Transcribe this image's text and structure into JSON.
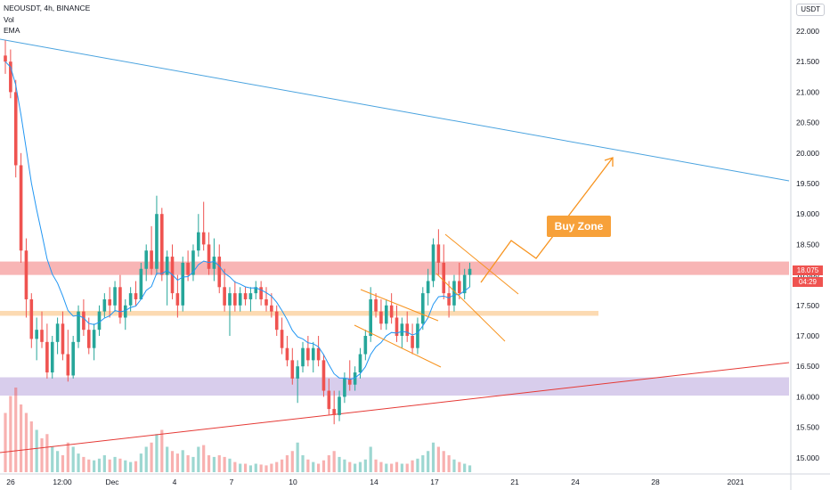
{
  "header": {
    "symbol_line": "NEOUSDT, 4h, BINANCE",
    "indicator_vol": "Vol",
    "indicator_ema": "EMA"
  },
  "currency": "USDT",
  "price_axis": {
    "labels": [
      "22.000",
      "21.500",
      "21.000",
      "20.500",
      "20.000",
      "19.500",
      "19.000",
      "18.500",
      "18.000",
      "17.500",
      "17.000",
      "16.500",
      "16.000",
      "15.500",
      "15.000"
    ],
    "values": [
      22.0,
      21.5,
      21.0,
      20.5,
      20.0,
      19.5,
      19.0,
      18.5,
      18.0,
      17.5,
      17.0,
      16.5,
      16.0,
      15.5,
      15.0
    ]
  },
  "time_axis": {
    "labels": [
      "26",
      "12:00",
      "Dec",
      "4",
      "7",
      "10",
      "14",
      "17",
      "21",
      "24",
      "28",
      "2021"
    ]
  },
  "last_price": {
    "value": "18.075",
    "countdown": "04:29"
  },
  "annotation": {
    "label": "Buy Zone"
  },
  "colors": {
    "up": "#26a69a",
    "down": "#ef5350",
    "ema": "#2196f3",
    "resistance_zone": "#f7a8a8",
    "support_zone_orange": "#fbd3a4",
    "support_zone_purple": "#d1c4e9",
    "arrow_orange": "#f7931e",
    "trend_blue": "#4aa3df",
    "trend_red": "#e53935"
  },
  "chart_data": {
    "type": "candlestick",
    "symbol": "NEOUSDT",
    "interval": "4h",
    "exchange": "BINANCE",
    "ylim": [
      14.85,
      22.15
    ],
    "last_price": 18.075,
    "zones": [
      {
        "name": "resistance",
        "from": 18.0,
        "to": 18.22
      },
      {
        "name": "support",
        "from": 17.33,
        "to": 17.41
      },
      {
        "name": "demand",
        "from": 16.02,
        "to": 16.32
      }
    ],
    "candles": [
      {
        "o": 21.6,
        "h": 21.85,
        "l": 21.3,
        "c": 21.5,
        "v": 0.7
      },
      {
        "o": 21.5,
        "h": 21.7,
        "l": 20.9,
        "c": 21.0,
        "v": 0.9
      },
      {
        "o": 21.0,
        "h": 21.2,
        "l": 19.6,
        "c": 19.8,
        "v": 1.0
      },
      {
        "o": 19.8,
        "h": 20.0,
        "l": 18.2,
        "c": 18.4,
        "v": 0.8
      },
      {
        "o": 18.4,
        "h": 18.6,
        "l": 17.3,
        "c": 17.6,
        "v": 0.7
      },
      {
        "o": 17.6,
        "h": 17.7,
        "l": 16.8,
        "c": 16.95,
        "v": 0.6
      },
      {
        "o": 16.95,
        "h": 17.3,
        "l": 16.6,
        "c": 17.1,
        "v": 0.5
      },
      {
        "o": 17.1,
        "h": 17.4,
        "l": 16.8,
        "c": 16.9,
        "v": 0.4
      },
      {
        "o": 16.9,
        "h": 17.2,
        "l": 16.3,
        "c": 16.4,
        "v": 0.45
      },
      {
        "o": 16.4,
        "h": 17.0,
        "l": 16.3,
        "c": 16.9,
        "v": 0.3
      },
      {
        "o": 16.9,
        "h": 17.3,
        "l": 16.7,
        "c": 17.2,
        "v": 0.25
      },
      {
        "o": 17.2,
        "h": 17.4,
        "l": 16.6,
        "c": 16.7,
        "v": 0.2
      },
      {
        "o": 16.7,
        "h": 17.1,
        "l": 16.25,
        "c": 16.35,
        "v": 0.35
      },
      {
        "o": 16.35,
        "h": 17.0,
        "l": 16.3,
        "c": 16.9,
        "v": 0.3
      },
      {
        "o": 16.9,
        "h": 17.5,
        "l": 16.8,
        "c": 17.4,
        "v": 0.22
      },
      {
        "o": 17.4,
        "h": 17.6,
        "l": 17.0,
        "c": 17.1,
        "v": 0.18
      },
      {
        "o": 17.1,
        "h": 17.3,
        "l": 16.7,
        "c": 16.8,
        "v": 0.15
      },
      {
        "o": 16.8,
        "h": 17.2,
        "l": 16.6,
        "c": 17.1,
        "v": 0.14
      },
      {
        "o": 17.1,
        "h": 17.5,
        "l": 17.0,
        "c": 17.4,
        "v": 0.16
      },
      {
        "o": 17.4,
        "h": 17.7,
        "l": 17.3,
        "c": 17.6,
        "v": 0.2
      },
      {
        "o": 17.6,
        "h": 17.8,
        "l": 17.3,
        "c": 17.5,
        "v": 0.15
      },
      {
        "o": 17.5,
        "h": 17.9,
        "l": 17.4,
        "c": 17.8,
        "v": 0.18
      },
      {
        "o": 17.8,
        "h": 18.0,
        "l": 17.2,
        "c": 17.3,
        "v": 0.16
      },
      {
        "o": 17.3,
        "h": 17.6,
        "l": 17.1,
        "c": 17.5,
        "v": 0.14
      },
      {
        "o": 17.5,
        "h": 17.8,
        "l": 17.4,
        "c": 17.7,
        "v": 0.12
      },
      {
        "o": 17.7,
        "h": 17.9,
        "l": 17.5,
        "c": 17.6,
        "v": 0.13
      },
      {
        "o": 17.6,
        "h": 18.2,
        "l": 17.6,
        "c": 18.1,
        "v": 0.22
      },
      {
        "o": 18.1,
        "h": 18.5,
        "l": 17.9,
        "c": 18.4,
        "v": 0.3
      },
      {
        "o": 18.4,
        "h": 18.8,
        "l": 18.0,
        "c": 18.1,
        "v": 0.35
      },
      {
        "o": 18.1,
        "h": 19.3,
        "l": 18.0,
        "c": 19.0,
        "v": 0.45
      },
      {
        "o": 19.0,
        "h": 19.1,
        "l": 17.9,
        "c": 18.0,
        "v": 0.5
      },
      {
        "o": 18.0,
        "h": 18.4,
        "l": 17.5,
        "c": 18.3,
        "v": 0.3
      },
      {
        "o": 18.3,
        "h": 18.5,
        "l": 17.6,
        "c": 17.7,
        "v": 0.25
      },
      {
        "o": 17.7,
        "h": 18.0,
        "l": 17.3,
        "c": 17.5,
        "v": 0.22
      },
      {
        "o": 17.5,
        "h": 18.3,
        "l": 17.4,
        "c": 18.2,
        "v": 0.26
      },
      {
        "o": 18.2,
        "h": 18.4,
        "l": 17.9,
        "c": 18.0,
        "v": 0.2
      },
      {
        "o": 18.0,
        "h": 18.5,
        "l": 17.9,
        "c": 18.4,
        "v": 0.18
      },
      {
        "o": 18.4,
        "h": 19.0,
        "l": 18.3,
        "c": 18.7,
        "v": 0.3
      },
      {
        "o": 18.7,
        "h": 19.2,
        "l": 18.4,
        "c": 18.5,
        "v": 0.32
      },
      {
        "o": 18.5,
        "h": 18.7,
        "l": 18.0,
        "c": 18.1,
        "v": 0.2
      },
      {
        "o": 18.1,
        "h": 18.6,
        "l": 17.9,
        "c": 18.3,
        "v": 0.18
      },
      {
        "o": 18.3,
        "h": 18.5,
        "l": 17.7,
        "c": 17.8,
        "v": 0.2
      },
      {
        "o": 17.8,
        "h": 18.1,
        "l": 17.4,
        "c": 17.5,
        "v": 0.18
      },
      {
        "o": 17.5,
        "h": 17.8,
        "l": 17.0,
        "c": 17.7,
        "v": 0.16
      },
      {
        "o": 17.7,
        "h": 17.9,
        "l": 17.4,
        "c": 17.5,
        "v": 0.12
      },
      {
        "o": 17.5,
        "h": 17.8,
        "l": 17.4,
        "c": 17.7,
        "v": 0.1
      },
      {
        "o": 17.7,
        "h": 17.8,
        "l": 17.5,
        "c": 17.6,
        "v": 0.1
      },
      {
        "o": 17.6,
        "h": 17.8,
        "l": 17.4,
        "c": 17.7,
        "v": 0.08
      },
      {
        "o": 17.7,
        "h": 17.9,
        "l": 17.6,
        "c": 17.8,
        "v": 0.1
      },
      {
        "o": 17.8,
        "h": 17.9,
        "l": 17.5,
        "c": 17.6,
        "v": 0.09
      },
      {
        "o": 17.6,
        "h": 17.8,
        "l": 17.4,
        "c": 17.5,
        "v": 0.08
      },
      {
        "o": 17.5,
        "h": 17.7,
        "l": 17.3,
        "c": 17.4,
        "v": 0.1
      },
      {
        "o": 17.4,
        "h": 17.5,
        "l": 17.0,
        "c": 17.1,
        "v": 0.12
      },
      {
        "o": 17.1,
        "h": 17.3,
        "l": 16.7,
        "c": 16.8,
        "v": 0.15
      },
      {
        "o": 16.8,
        "h": 17.0,
        "l": 16.5,
        "c": 16.6,
        "v": 0.2
      },
      {
        "o": 16.6,
        "h": 16.8,
        "l": 16.2,
        "c": 16.3,
        "v": 0.25
      },
      {
        "o": 16.3,
        "h": 16.6,
        "l": 15.9,
        "c": 16.5,
        "v": 0.35
      },
      {
        "o": 16.5,
        "h": 16.9,
        "l": 16.4,
        "c": 16.8,
        "v": 0.2
      },
      {
        "o": 16.8,
        "h": 17.0,
        "l": 16.5,
        "c": 16.6,
        "v": 0.15
      },
      {
        "o": 16.6,
        "h": 16.9,
        "l": 16.4,
        "c": 16.8,
        "v": 0.12
      },
      {
        "o": 16.8,
        "h": 17.0,
        "l": 16.5,
        "c": 16.6,
        "v": 0.1
      },
      {
        "o": 16.6,
        "h": 16.7,
        "l": 16.0,
        "c": 16.1,
        "v": 0.14
      },
      {
        "o": 16.1,
        "h": 16.3,
        "l": 15.7,
        "c": 15.8,
        "v": 0.2
      },
      {
        "o": 15.8,
        "h": 16.1,
        "l": 15.55,
        "c": 15.7,
        "v": 0.25
      },
      {
        "o": 15.7,
        "h": 16.1,
        "l": 15.6,
        "c": 16.0,
        "v": 0.18
      },
      {
        "o": 16.0,
        "h": 16.4,
        "l": 15.9,
        "c": 16.3,
        "v": 0.15
      },
      {
        "o": 16.3,
        "h": 16.6,
        "l": 16.1,
        "c": 16.2,
        "v": 0.12
      },
      {
        "o": 16.2,
        "h": 16.5,
        "l": 16.1,
        "c": 16.4,
        "v": 0.1
      },
      {
        "o": 16.4,
        "h": 16.8,
        "l": 16.3,
        "c": 16.7,
        "v": 0.12
      },
      {
        "o": 16.7,
        "h": 17.1,
        "l": 16.6,
        "c": 17.0,
        "v": 0.15
      },
      {
        "o": 17.0,
        "h": 17.8,
        "l": 16.9,
        "c": 17.6,
        "v": 0.3
      },
      {
        "o": 17.6,
        "h": 17.7,
        "l": 17.3,
        "c": 17.4,
        "v": 0.15
      },
      {
        "o": 17.4,
        "h": 17.6,
        "l": 17.1,
        "c": 17.2,
        "v": 0.12
      },
      {
        "o": 17.2,
        "h": 17.6,
        "l": 17.1,
        "c": 17.5,
        "v": 0.1
      },
      {
        "o": 17.5,
        "h": 17.7,
        "l": 17.2,
        "c": 17.3,
        "v": 0.1
      },
      {
        "o": 17.3,
        "h": 17.5,
        "l": 16.9,
        "c": 17.0,
        "v": 0.12
      },
      {
        "o": 17.0,
        "h": 17.3,
        "l": 16.8,
        "c": 17.2,
        "v": 0.1
      },
      {
        "o": 17.2,
        "h": 17.4,
        "l": 16.9,
        "c": 17.0,
        "v": 0.1
      },
      {
        "o": 17.0,
        "h": 17.2,
        "l": 16.7,
        "c": 16.8,
        "v": 0.14
      },
      {
        "o": 16.8,
        "h": 17.3,
        "l": 16.7,
        "c": 17.2,
        "v": 0.16
      },
      {
        "o": 17.2,
        "h": 17.8,
        "l": 17.1,
        "c": 17.7,
        "v": 0.2
      },
      {
        "o": 17.7,
        "h": 18.1,
        "l": 17.5,
        "c": 17.9,
        "v": 0.25
      },
      {
        "o": 17.9,
        "h": 18.6,
        "l": 17.8,
        "c": 18.5,
        "v": 0.35
      },
      {
        "o": 18.5,
        "h": 18.75,
        "l": 18.0,
        "c": 18.2,
        "v": 0.3
      },
      {
        "o": 18.2,
        "h": 18.5,
        "l": 17.6,
        "c": 17.7,
        "v": 0.25
      },
      {
        "o": 17.7,
        "h": 17.9,
        "l": 17.3,
        "c": 17.5,
        "v": 0.2
      },
      {
        "o": 17.5,
        "h": 18.0,
        "l": 17.4,
        "c": 17.9,
        "v": 0.15
      },
      {
        "o": 17.9,
        "h": 18.2,
        "l": 17.6,
        "c": 17.7,
        "v": 0.12
      },
      {
        "o": 17.7,
        "h": 18.1,
        "l": 17.6,
        "c": 18.0,
        "v": 0.1
      },
      {
        "o": 18.0,
        "h": 18.2,
        "l": 17.8,
        "c": 18.1,
        "v": 0.08
      }
    ]
  }
}
